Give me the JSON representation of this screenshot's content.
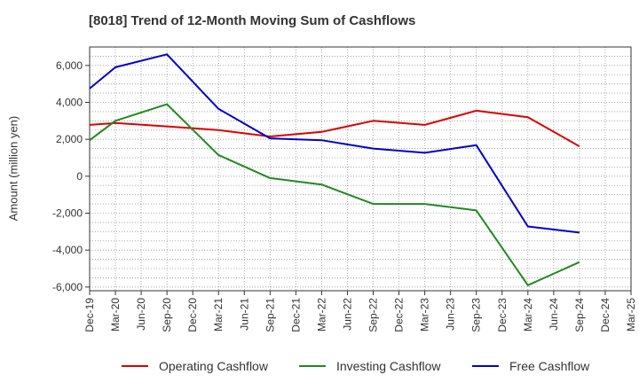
{
  "chart_data": {
    "type": "line",
    "title": "[8018]  Trend of 12-Month Moving Sum of Cashflows",
    "ylabel": "Amount (million yen)",
    "xlabel": "",
    "x": [
      "Dec-19",
      "Mar-20",
      "Jun-20",
      "Sep-20",
      "Dec-20",
      "Mar-21",
      "Jun-21",
      "Sep-21",
      "Dec-21",
      "Mar-22",
      "Jun-22",
      "Sep-22",
      "Dec-22",
      "Mar-23",
      "Jun-23",
      "Sep-23",
      "Dec-23",
      "Mar-24",
      "Jun-24",
      "Sep-24",
      "Dec-24",
      "Mar-25"
    ],
    "ylim": [
      -6200,
      7000
    ],
    "yticks": [
      -6000,
      -4000,
      -2000,
      0,
      2000,
      4000,
      6000
    ],
    "ytick_labels": [
      "-6,000",
      "-4,000",
      "-2,000",
      "0",
      "2,000",
      "4,000",
      "6,000"
    ],
    "grid": true,
    "legend_position": "bottom",
    "series": [
      {
        "name": "Operating Cashflow",
        "color": "#dd0000",
        "values": [
          2780,
          2880,
          null,
          2700,
          null,
          2500,
          null,
          2150,
          null,
          2400,
          null,
          3000,
          null,
          2780,
          null,
          3550,
          null,
          3200,
          null,
          1620,
          null,
          null
        ]
      },
      {
        "name": "Investing Cashflow",
        "color": "#228822",
        "values": [
          1950,
          3000,
          null,
          3900,
          null,
          1150,
          null,
          -100,
          null,
          -450,
          null,
          -1500,
          null,
          -1500,
          null,
          -1850,
          null,
          -5900,
          null,
          -4650,
          null,
          null
        ]
      },
      {
        "name": "Free Cashflow",
        "color": "#0000cc",
        "values": [
          4750,
          5900,
          null,
          6600,
          null,
          3650,
          null,
          2050,
          null,
          1950,
          null,
          1500,
          null,
          1270,
          null,
          1680,
          null,
          -2720,
          null,
          -3050,
          null,
          null
        ]
      }
    ]
  }
}
